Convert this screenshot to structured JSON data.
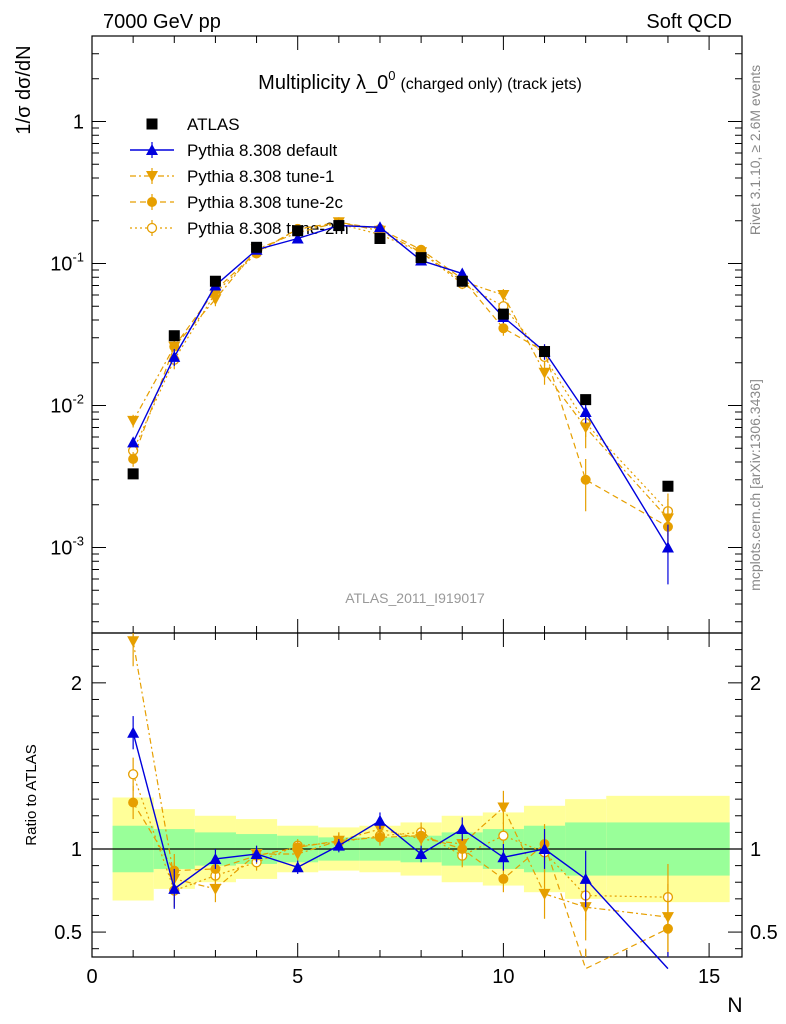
{
  "header": {
    "left": "7000 GeV pp",
    "right": "Soft QCD"
  },
  "title": {
    "main": "Multiplicity λ_0",
    "superscript": "0",
    "suffix": "(charged only) (track jets)"
  },
  "side_labels": {
    "rivet": "Rivet 3.1.10, ≥ 2.6M events",
    "mcplots": "mcplots.cern.ch [arXiv:1306.3436]"
  },
  "analysis_id": "ATLAS_2011_I919017",
  "colors": {
    "atlas": "#000000",
    "default": "#0000dd",
    "tune": "#e69f00",
    "band_inner": "#99ff99",
    "band_outer": "#ffff99"
  },
  "chart_data": [
    {
      "type": "scatter",
      "panel": "main",
      "ylabel": "1/σ dσ/dN",
      "yscale": "log",
      "ylim": [
        0.00025,
        4
      ],
      "xlim": [
        0,
        15.8
      ],
      "ytick_labels": [
        "1",
        "10^-1",
        "10^-2",
        "10^-3"
      ],
      "legend": "top-left",
      "x": [
        1,
        2,
        3,
        4,
        5,
        6,
        7,
        8,
        9,
        10,
        11,
        12,
        14
      ],
      "series": [
        {
          "name": "ATLAS",
          "marker": "square",
          "values": [
            0.0033,
            0.031,
            0.075,
            0.13,
            0.17,
            0.185,
            0.15,
            0.11,
            0.075,
            0.044,
            0.024,
            0.011,
            0.0027
          ]
        },
        {
          "name": "Pythia 8.308 default",
          "marker": "triangle-up",
          "line": "solid",
          "values": [
            0.0055,
            0.022,
            0.07,
            0.125,
            0.15,
            0.185,
            0.18,
            0.105,
            0.085,
            0.042,
            0.024,
            0.009,
            0.001
          ],
          "err": [
            0.0004,
            0.003,
            0.005,
            0.006,
            0.006,
            0.007,
            0.007,
            0.006,
            0.006,
            0.004,
            0.003,
            0.0015,
            0.00045
          ]
        },
        {
          "name": "Pythia 8.308 tune-1",
          "marker": "triangle-down",
          "line": "dashdot",
          "values": [
            0.0078,
            0.026,
            0.056,
            0.126,
            0.165,
            0.195,
            0.17,
            0.12,
            0.075,
            0.06,
            0.017,
            0.007,
            0.0016
          ],
          "err": [
            0.0008,
            0.003,
            0.006,
            0.007,
            0.008,
            0.008,
            0.008,
            0.007,
            0.006,
            0.006,
            0.003,
            0.002,
            0.0006
          ]
        },
        {
          "name": "Pythia 8.308 tune-2c",
          "marker": "circle-filled",
          "line": "dashed",
          "values": [
            0.0042,
            0.026,
            0.065,
            0.12,
            0.175,
            0.195,
            0.175,
            0.125,
            0.078,
            0.035,
            0.024,
            0.003,
            0.0014
          ],
          "err": [
            0.0005,
            0.003,
            0.006,
            0.007,
            0.008,
            0.008,
            0.008,
            0.007,
            0.006,
            0.004,
            0.003,
            0.0012,
            0.0005
          ]
        },
        {
          "name": "Pythia 8.308 tune-2m",
          "marker": "circle-open",
          "line": "dotted",
          "values": [
            0.0048,
            0.021,
            0.062,
            0.118,
            0.175,
            0.19,
            0.16,
            0.12,
            0.072,
            0.05,
            0.022,
            0.0075,
            0.0018
          ],
          "err": [
            0.0005,
            0.003,
            0.006,
            0.006,
            0.007,
            0.008,
            0.008,
            0.007,
            0.006,
            0.005,
            0.003,
            0.0015,
            0.0006
          ]
        }
      ]
    },
    {
      "type": "scatter",
      "panel": "ratio",
      "ylabel": "Ratio to ATLAS",
      "xlabel": "N",
      "ylim": [
        0.35,
        2.3
      ],
      "xlim": [
        0,
        15.8
      ],
      "yticks": [
        0.5,
        1,
        2
      ],
      "ytick_labels": [
        "0.5",
        "1",
        "2"
      ],
      "xticks": [
        0,
        5,
        10,
        15
      ],
      "xtick_labels": [
        "0",
        "5",
        "10",
        "15"
      ],
      "reference_line": 1,
      "bands": [
        {
          "x_from": 0.5,
          "x_to": 1.5,
          "inner": [
            0.86,
            1.14
          ],
          "outer": [
            0.69,
            1.31
          ]
        },
        {
          "x_from": 1.5,
          "x_to": 2.5,
          "inner": [
            0.88,
            1.12
          ],
          "outer": [
            0.76,
            1.24
          ]
        },
        {
          "x_from": 2.5,
          "x_to": 3.5,
          "inner": [
            0.9,
            1.1
          ],
          "outer": [
            0.8,
            1.2
          ]
        },
        {
          "x_from": 3.5,
          "x_to": 4.5,
          "inner": [
            0.91,
            1.09
          ],
          "outer": [
            0.82,
            1.18
          ]
        },
        {
          "x_from": 4.5,
          "x_to": 5.5,
          "inner": [
            0.92,
            1.08
          ],
          "outer": [
            0.86,
            1.14
          ]
        },
        {
          "x_from": 5.5,
          "x_to": 6.5,
          "inner": [
            0.93,
            1.07
          ],
          "outer": [
            0.87,
            1.13
          ]
        },
        {
          "x_from": 6.5,
          "x_to": 7.5,
          "inner": [
            0.93,
            1.07
          ],
          "outer": [
            0.86,
            1.14
          ]
        },
        {
          "x_from": 7.5,
          "x_to": 8.5,
          "inner": [
            0.92,
            1.08
          ],
          "outer": [
            0.84,
            1.16
          ]
        },
        {
          "x_from": 8.5,
          "x_to": 9.5,
          "inner": [
            0.9,
            1.1
          ],
          "outer": [
            0.8,
            1.2
          ]
        },
        {
          "x_from": 9.5,
          "x_to": 10.5,
          "inner": [
            0.88,
            1.12
          ],
          "outer": [
            0.78,
            1.22
          ]
        },
        {
          "x_from": 10.5,
          "x_to": 11.5,
          "inner": [
            0.86,
            1.14
          ],
          "outer": [
            0.74,
            1.26
          ]
        },
        {
          "x_from": 11.5,
          "x_to": 12.5,
          "inner": [
            0.84,
            1.16
          ],
          "outer": [
            0.7,
            1.3
          ]
        },
        {
          "x_from": 12.5,
          "x_to": 15.5,
          "inner": [
            0.84,
            1.16
          ],
          "outer": [
            0.68,
            1.32
          ]
        }
      ],
      "x": [
        1,
        2,
        3,
        4,
        5,
        6,
        7,
        8,
        9,
        10,
        11,
        12,
        14
      ],
      "series": [
        {
          "name": "Pythia 8.308 default",
          "values": [
            1.7,
            0.76,
            0.94,
            0.97,
            0.89,
            1.02,
            1.17,
            0.97,
            1.12,
            0.95,
            1.0,
            0.82,
            0.28
          ],
          "err": [
            0.1,
            0.12,
            0.06,
            0.05,
            0.04,
            0.04,
            0.05,
            0.05,
            0.07,
            0.08,
            0.12,
            0.17,
            0.1
          ]
        },
        {
          "name": "Pythia 8.308 tune-1",
          "values": [
            2.25,
            0.82,
            0.76,
            0.97,
            0.97,
            1.05,
            1.12,
            1.06,
            1.03,
            1.25,
            0.73,
            0.65,
            0.59
          ],
          "err": [
            0.15,
            0.1,
            0.08,
            0.05,
            0.04,
            0.05,
            0.05,
            0.06,
            0.08,
            0.1,
            0.15,
            0.2,
            0.2
          ]
        },
        {
          "name": "Pythia 8.308 tune-2c",
          "values": [
            1.28,
            0.87,
            0.88,
            0.96,
            1.01,
            1.05,
            1.07,
            1.08,
            1.0,
            0.82,
            1.03,
            0.28,
            0.52
          ],
          "err": [
            0.1,
            0.1,
            0.06,
            0.05,
            0.04,
            0.05,
            0.05,
            0.06,
            0.07,
            0.08,
            0.12,
            0.12,
            0.18
          ]
        },
        {
          "name": "Pythia 8.308 tune-2m",
          "values": [
            1.45,
            0.75,
            0.84,
            0.92,
            1.02,
            1.04,
            1.08,
            1.1,
            0.96,
            1.08,
            0.98,
            0.72,
            0.71
          ],
          "err": [
            0.1,
            0.1,
            0.06,
            0.05,
            0.04,
            0.05,
            0.05,
            0.06,
            0.07,
            0.08,
            0.12,
            0.15,
            0.2
          ]
        }
      ]
    }
  ]
}
